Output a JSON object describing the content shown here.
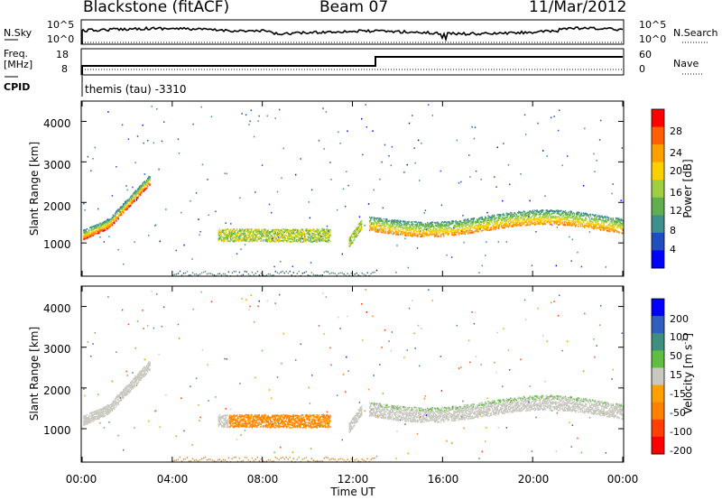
{
  "header": {
    "station": "Blackstone (fitACF)",
    "beam": "Beam 07",
    "date": "11/Mar/2012"
  },
  "top_panels": {
    "nsky_label": "N.Sky",
    "nsearch_label": "N.Search",
    "noise_ticks_left": [
      "10^5",
      "10^0"
    ],
    "noise_ticks_right": [
      "10^5",
      "10^0"
    ],
    "freq_label": "Freq.",
    "freq_unit": "[MHz]",
    "freq_ticks": [
      "18",
      "8"
    ],
    "nave_label": "Nave",
    "nave_ticks": [
      "60",
      "0"
    ],
    "cpid_label": "CPID",
    "cpid_value": "themis (tau) -3310"
  },
  "colors": {
    "power_scale": [
      "#0000ff",
      "#1f4fbf",
      "#3f8f8f",
      "#5faf4f",
      "#9fcf3f",
      "#ffcf00",
      "#ffa000",
      "#ff6000",
      "#ff0000"
    ],
    "velocity_scale": [
      "#0000ff",
      "#2f5fbf",
      "#3f8f7f",
      "#5fbf3f",
      "#c8c8c0",
      "#ffa000",
      "#ff8000",
      "#ff4000",
      "#ff0000"
    ]
  },
  "chart_data": [
    {
      "type": "heatmap",
      "name": "power",
      "ylabel": "Slant Range [km]",
      "xlabel": "",
      "ylim": [
        180,
        4500
      ],
      "y_ticks": [
        "4000",
        "3000",
        "2000",
        "1000"
      ],
      "colorbar": {
        "label": "Power [dB]",
        "ticks": [
          "28",
          "24",
          "20",
          "16",
          "12",
          "8",
          "4"
        ],
        "range": [
          0,
          30
        ]
      },
      "description_points": [
        {
          "time_h": 0.3,
          "range_km": 1250,
          "value_db": 26
        },
        {
          "time_h": 2.0,
          "range_km": 1500,
          "value_db": 14
        },
        {
          "time_h": 8.0,
          "range_km": 1150,
          "value_db": 12
        },
        {
          "time_h": 12.5,
          "range_km": 1100,
          "value_db": 24
        },
        {
          "time_h": 17.0,
          "range_km": 1300,
          "value_db": 22
        },
        {
          "time_h": 23.5,
          "range_km": 1500,
          "value_db": 18
        }
      ]
    },
    {
      "type": "heatmap",
      "name": "velocity",
      "ylabel": "Slant Range [km]",
      "xlabel": "Time UT",
      "ylim": [
        180,
        4500
      ],
      "y_ticks": [
        "4000",
        "3000",
        "2000",
        "1000"
      ],
      "x_ticks": [
        "00:00",
        "04:00",
        "08:00",
        "12:00",
        "16:00",
        "20:00",
        "00:00"
      ],
      "colorbar": {
        "label": "Velocity [m s",
        "label_sup": "-1",
        "label_end": "]",
        "ticks": [
          "200",
          "100",
          "50",
          "15",
          "-15",
          "-50",
          "-100",
          "-200"
        ],
        "range": [
          -250,
          250
        ]
      },
      "description_points": [
        {
          "time_h": 1.0,
          "range_km": 1300,
          "value_ms": 0
        },
        {
          "time_h": 8.0,
          "range_km": 1100,
          "value_ms": -80
        },
        {
          "time_h": 16.0,
          "range_km": 1500,
          "value_ms": 0
        },
        {
          "time_h": 13.0,
          "range_km": 1900,
          "value_ms": 40
        }
      ]
    }
  ]
}
